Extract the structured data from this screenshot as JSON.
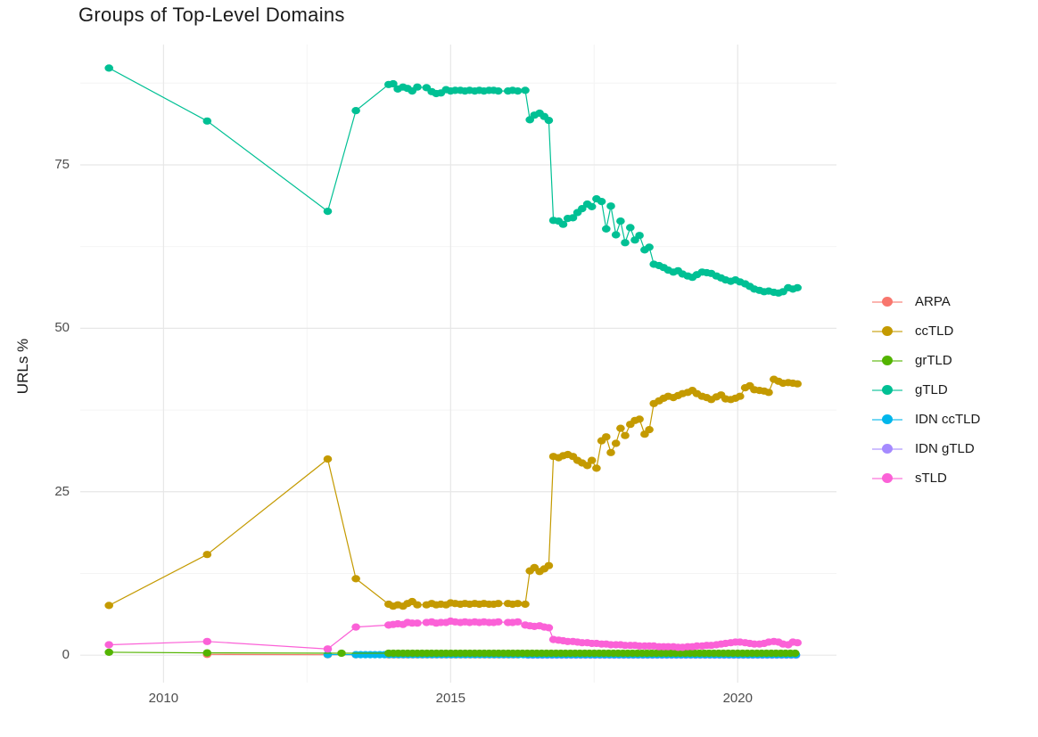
{
  "header": {
    "title": "Groups of Top-Level Domains"
  },
  "palette": {
    "background": "#FFFFFF",
    "grid_major": "#E7E7E7",
    "grid_minor": "#F4F4F4",
    "tick_label_color": "#4D4D4D",
    "title_color": "#1B1B1B"
  },
  "chart_data": {
    "type": "scatter",
    "title": "Groups of Top-Level Domains",
    "xlabel": "",
    "ylabel": "URLs %",
    "grid": "on",
    "legend_position": "right",
    "x_ticks": [
      2010,
      2015,
      2020
    ],
    "x_minor_ticks": [
      2012.5,
      2017.5
    ],
    "y_ticks": [
      0,
      25,
      50,
      75
    ],
    "y_minor_ticks": [
      12.5,
      37.5,
      62.5,
      87.5
    ],
    "xlim": [
      2008.55,
      2021.72
    ],
    "ylim": [
      -4.2,
      93.4
    ],
    "series": [
      {
        "name": "ARPA",
        "key": "arpa",
        "color": "#F8766D",
        "z": 1,
        "points": [
          [
            2010.76,
            0.12
          ],
          [
            2012.86,
            0.07
          ],
          [
            2013.35,
            0.06
          ]
        ],
        "span": {
          "start": 2013.92,
          "end": 2016.2,
          "step": 0.0833,
          "value": 0.05
        }
      },
      {
        "name": "ccTLD",
        "key": "cctld",
        "color": "#C49A00",
        "z": 5,
        "points": [
          [
            2009.05,
            7.6
          ],
          [
            2010.76,
            15.4
          ],
          [
            2012.86,
            30.0
          ],
          [
            2013.35,
            11.7
          ],
          [
            2013.92,
            7.8
          ],
          [
            2014.0,
            7.5
          ],
          [
            2014.08,
            7.7
          ],
          [
            2014.17,
            7.5
          ],
          [
            2014.25,
            7.9
          ],
          [
            2014.33,
            8.2
          ],
          [
            2014.42,
            7.7
          ],
          [
            2014.58,
            7.7
          ],
          [
            2014.67,
            7.9
          ],
          [
            2014.75,
            7.7
          ],
          [
            2014.83,
            7.8
          ],
          [
            2014.92,
            7.7
          ],
          [
            2015.0,
            8.0
          ],
          [
            2015.08,
            7.9
          ],
          [
            2015.17,
            7.8
          ],
          [
            2015.25,
            7.9
          ],
          [
            2015.33,
            7.8
          ],
          [
            2015.42,
            7.9
          ],
          [
            2015.5,
            7.8
          ],
          [
            2015.58,
            7.9
          ],
          [
            2015.67,
            7.8
          ],
          [
            2015.75,
            7.8
          ],
          [
            2015.83,
            7.9
          ],
          [
            2016.0,
            7.9
          ],
          [
            2016.08,
            7.8
          ],
          [
            2016.17,
            7.9
          ],
          [
            2016.3,
            7.8
          ],
          [
            2016.38,
            12.9
          ],
          [
            2016.46,
            13.4
          ],
          [
            2016.55,
            12.8
          ],
          [
            2016.63,
            13.2
          ],
          [
            2016.71,
            13.7
          ],
          [
            2016.79,
            30.4
          ],
          [
            2016.88,
            30.2
          ],
          [
            2016.96,
            30.5
          ],
          [
            2017.04,
            30.7
          ],
          [
            2017.13,
            30.4
          ],
          [
            2017.21,
            29.8
          ],
          [
            2017.29,
            29.4
          ],
          [
            2017.38,
            29.0
          ],
          [
            2017.46,
            29.8
          ],
          [
            2017.54,
            28.6
          ],
          [
            2017.63,
            32.8
          ],
          [
            2017.71,
            33.4
          ],
          [
            2017.79,
            31.0
          ],
          [
            2017.88,
            32.4
          ],
          [
            2017.96,
            34.7
          ],
          [
            2018.04,
            33.6
          ],
          [
            2018.13,
            35.3
          ],
          [
            2018.21,
            35.9
          ],
          [
            2018.29,
            36.1
          ],
          [
            2018.38,
            33.8
          ],
          [
            2018.46,
            34.5
          ],
          [
            2018.54,
            38.5
          ],
          [
            2018.63,
            38.9
          ],
          [
            2018.71,
            39.3
          ],
          [
            2018.79,
            39.6
          ],
          [
            2018.88,
            39.4
          ],
          [
            2018.96,
            39.7
          ],
          [
            2019.04,
            40.0
          ],
          [
            2019.13,
            40.2
          ],
          [
            2019.21,
            40.5
          ],
          [
            2019.29,
            40.0
          ],
          [
            2019.38,
            39.6
          ],
          [
            2019.46,
            39.4
          ],
          [
            2019.54,
            39.1
          ],
          [
            2019.63,
            39.5
          ],
          [
            2019.71,
            39.8
          ],
          [
            2019.79,
            39.2
          ],
          [
            2019.88,
            39.1
          ],
          [
            2019.96,
            39.3
          ],
          [
            2020.04,
            39.6
          ],
          [
            2020.13,
            40.9
          ],
          [
            2020.21,
            41.2
          ],
          [
            2020.29,
            40.6
          ],
          [
            2020.38,
            40.5
          ],
          [
            2020.46,
            40.4
          ],
          [
            2020.54,
            40.2
          ],
          [
            2020.63,
            42.2
          ],
          [
            2020.71,
            41.9
          ],
          [
            2020.79,
            41.6
          ],
          [
            2020.88,
            41.7
          ],
          [
            2020.96,
            41.6
          ],
          [
            2021.04,
            41.5
          ]
        ]
      },
      {
        "name": "grTLD",
        "key": "grtld",
        "color": "#53B400",
        "z": 4,
        "points": [
          [
            2009.05,
            0.45
          ],
          [
            2010.76,
            0.35
          ],
          [
            2013.1,
            0.3
          ]
        ],
        "span": {
          "start": 2013.92,
          "end": 2021.05,
          "step": 0.0833,
          "value": 0.3
        }
      },
      {
        "name": "gTLD",
        "key": "gtld",
        "color": "#00C094",
        "z": 6,
        "points": [
          [
            2009.05,
            89.8
          ],
          [
            2010.76,
            81.7
          ],
          [
            2012.86,
            67.9
          ],
          [
            2013.35,
            83.3
          ],
          [
            2013.92,
            87.3
          ],
          [
            2014.0,
            87.4
          ],
          [
            2014.08,
            86.6
          ],
          [
            2014.17,
            86.9
          ],
          [
            2014.25,
            86.7
          ],
          [
            2014.33,
            86.3
          ],
          [
            2014.42,
            86.9
          ],
          [
            2014.58,
            86.8
          ],
          [
            2014.67,
            86.2
          ],
          [
            2014.75,
            85.9
          ],
          [
            2014.83,
            86.0
          ],
          [
            2014.92,
            86.5
          ],
          [
            2015.0,
            86.3
          ],
          [
            2015.08,
            86.4
          ],
          [
            2015.17,
            86.4
          ],
          [
            2015.25,
            86.3
          ],
          [
            2015.33,
            86.4
          ],
          [
            2015.42,
            86.3
          ],
          [
            2015.5,
            86.4
          ],
          [
            2015.58,
            86.3
          ],
          [
            2015.67,
            86.4
          ],
          [
            2015.75,
            86.4
          ],
          [
            2015.83,
            86.3
          ],
          [
            2016.0,
            86.3
          ],
          [
            2016.08,
            86.4
          ],
          [
            2016.17,
            86.3
          ],
          [
            2016.3,
            86.4
          ],
          [
            2016.38,
            81.9
          ],
          [
            2016.46,
            82.6
          ],
          [
            2016.55,
            82.9
          ],
          [
            2016.63,
            82.4
          ],
          [
            2016.71,
            81.8
          ],
          [
            2016.79,
            66.5
          ],
          [
            2016.88,
            66.4
          ],
          [
            2016.96,
            65.9
          ],
          [
            2017.04,
            66.8
          ],
          [
            2017.13,
            66.9
          ],
          [
            2017.21,
            67.7
          ],
          [
            2017.29,
            68.3
          ],
          [
            2017.38,
            69.0
          ],
          [
            2017.46,
            68.6
          ],
          [
            2017.54,
            69.8
          ],
          [
            2017.63,
            69.4
          ],
          [
            2017.71,
            65.2
          ],
          [
            2017.79,
            68.7
          ],
          [
            2017.88,
            64.3
          ],
          [
            2017.96,
            66.4
          ],
          [
            2018.04,
            63.1
          ],
          [
            2018.13,
            65.4
          ],
          [
            2018.21,
            63.5
          ],
          [
            2018.29,
            64.2
          ],
          [
            2018.38,
            62.0
          ],
          [
            2018.46,
            62.4
          ],
          [
            2018.54,
            59.8
          ],
          [
            2018.63,
            59.6
          ],
          [
            2018.71,
            59.3
          ],
          [
            2018.79,
            58.9
          ],
          [
            2018.88,
            58.6
          ],
          [
            2018.96,
            58.8
          ],
          [
            2019.04,
            58.3
          ],
          [
            2019.13,
            58.0
          ],
          [
            2019.21,
            57.8
          ],
          [
            2019.29,
            58.2
          ],
          [
            2019.38,
            58.6
          ],
          [
            2019.46,
            58.5
          ],
          [
            2019.54,
            58.4
          ],
          [
            2019.63,
            58.0
          ],
          [
            2019.71,
            57.7
          ],
          [
            2019.79,
            57.4
          ],
          [
            2019.88,
            57.2
          ],
          [
            2019.96,
            57.4
          ],
          [
            2020.04,
            57.1
          ],
          [
            2020.13,
            56.8
          ],
          [
            2020.21,
            56.4
          ],
          [
            2020.29,
            56.0
          ],
          [
            2020.38,
            55.8
          ],
          [
            2020.46,
            55.6
          ],
          [
            2020.54,
            55.7
          ],
          [
            2020.63,
            55.5
          ],
          [
            2020.71,
            55.4
          ],
          [
            2020.79,
            55.6
          ],
          [
            2020.88,
            56.2
          ],
          [
            2020.96,
            56.0
          ],
          [
            2021.04,
            56.2
          ]
        ]
      },
      {
        "name": "IDN ccTLD",
        "key": "idn-cctld",
        "color": "#00B6EB",
        "z": 3,
        "points": [
          [
            2012.86,
            0.1
          ]
        ],
        "span": {
          "start": 2013.35,
          "end": 2021.05,
          "step": 0.0833,
          "value": 0.08
        }
      },
      {
        "name": "IDN gTLD",
        "key": "idn-gtld",
        "color": "#A58AFF",
        "z": 2,
        "points": [],
        "span": {
          "start": 2016.35,
          "end": 2021.05,
          "step": 0.0833,
          "value": 0.0
        }
      },
      {
        "name": "sTLD",
        "key": "stld",
        "color": "#FB61D7",
        "z": 7,
        "points": [
          [
            2009.05,
            1.6
          ],
          [
            2010.76,
            2.1
          ],
          [
            2012.86,
            0.95
          ],
          [
            2013.35,
            4.3
          ],
          [
            2013.92,
            4.6
          ],
          [
            2014.0,
            4.7
          ],
          [
            2014.08,
            4.8
          ],
          [
            2014.17,
            4.7
          ],
          [
            2014.25,
            5.0
          ],
          [
            2014.33,
            4.9
          ],
          [
            2014.42,
            4.9
          ],
          [
            2014.58,
            5.0
          ],
          [
            2014.67,
            5.1
          ],
          [
            2014.75,
            4.9
          ],
          [
            2014.83,
            5.0
          ],
          [
            2014.92,
            5.0
          ],
          [
            2015.0,
            5.2
          ],
          [
            2015.08,
            5.1
          ],
          [
            2015.17,
            5.0
          ],
          [
            2015.25,
            5.1
          ],
          [
            2015.33,
            5.0
          ],
          [
            2015.42,
            5.1
          ],
          [
            2015.5,
            5.0
          ],
          [
            2015.58,
            5.1
          ],
          [
            2015.67,
            5.0
          ],
          [
            2015.75,
            5.0
          ],
          [
            2015.83,
            5.1
          ],
          [
            2016.0,
            5.0
          ],
          [
            2016.08,
            5.0
          ],
          [
            2016.17,
            5.1
          ],
          [
            2016.3,
            4.6
          ],
          [
            2016.38,
            4.5
          ],
          [
            2016.46,
            4.4
          ],
          [
            2016.55,
            4.5
          ],
          [
            2016.63,
            4.3
          ],
          [
            2016.71,
            4.2
          ],
          [
            2016.79,
            2.4
          ],
          [
            2016.88,
            2.3
          ],
          [
            2016.96,
            2.2
          ],
          [
            2017.04,
            2.1
          ],
          [
            2017.13,
            2.1
          ],
          [
            2017.21,
            2.0
          ],
          [
            2017.29,
            1.9
          ],
          [
            2017.38,
            1.9
          ],
          [
            2017.46,
            1.8
          ],
          [
            2017.54,
            1.8
          ],
          [
            2017.63,
            1.7
          ],
          [
            2017.71,
            1.7
          ],
          [
            2017.79,
            1.6
          ],
          [
            2017.88,
            1.6
          ],
          [
            2017.96,
            1.6
          ],
          [
            2018.04,
            1.5
          ],
          [
            2018.13,
            1.5
          ],
          [
            2018.21,
            1.5
          ],
          [
            2018.29,
            1.4
          ],
          [
            2018.38,
            1.4
          ],
          [
            2018.46,
            1.4
          ],
          [
            2018.54,
            1.4
          ],
          [
            2018.63,
            1.3
          ],
          [
            2018.71,
            1.3
          ],
          [
            2018.79,
            1.3
          ],
          [
            2018.88,
            1.3
          ],
          [
            2018.96,
            1.2
          ],
          [
            2019.04,
            1.2
          ],
          [
            2019.13,
            1.3
          ],
          [
            2019.21,
            1.3
          ],
          [
            2019.29,
            1.4
          ],
          [
            2019.38,
            1.4
          ],
          [
            2019.46,
            1.5
          ],
          [
            2019.54,
            1.5
          ],
          [
            2019.63,
            1.6
          ],
          [
            2019.71,
            1.7
          ],
          [
            2019.79,
            1.8
          ],
          [
            2019.88,
            1.9
          ],
          [
            2019.96,
            2.0
          ],
          [
            2020.04,
            2.0
          ],
          [
            2020.13,
            1.9
          ],
          [
            2020.21,
            1.8
          ],
          [
            2020.29,
            1.7
          ],
          [
            2020.38,
            1.7
          ],
          [
            2020.46,
            1.8
          ],
          [
            2020.54,
            2.0
          ],
          [
            2020.63,
            2.1
          ],
          [
            2020.71,
            2.0
          ],
          [
            2020.79,
            1.7
          ],
          [
            2020.88,
            1.6
          ],
          [
            2020.96,
            2.0
          ],
          [
            2021.04,
            1.9
          ]
        ]
      }
    ]
  }
}
